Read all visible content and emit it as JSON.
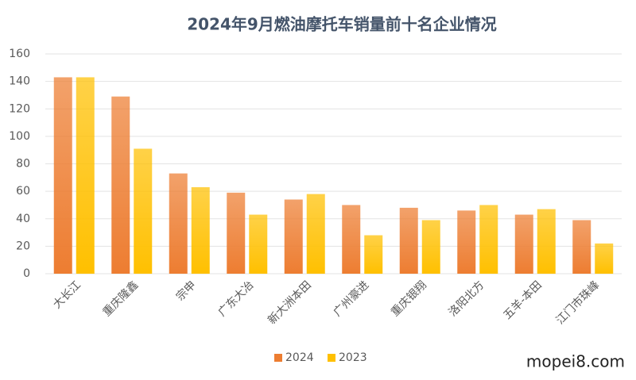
{
  "chart_data": {
    "type": "bar",
    "title": "2024年9月燃油摩托车销量前十名企业情况",
    "categories": [
      "大长江",
      "重庆隆鑫",
      "宗申",
      "广东大冶",
      "新大洲本田",
      "广州豪进",
      "重庆银翔",
      "洛阳北方",
      "五羊-本田",
      "江门市珠峰"
    ],
    "series": [
      {
        "name": "2024",
        "color": "#ED7D31",
        "values": [
          143,
          129,
          73,
          59,
          54,
          50,
          48,
          46,
          43,
          39
        ]
      },
      {
        "name": "2023",
        "color": "#FFC000",
        "values": [
          143,
          91,
          63,
          43,
          58,
          28,
          39,
          50,
          47,
          22
        ]
      }
    ],
    "ylim": [
      0,
      160
    ],
    "yticks": [
      0,
      20,
      40,
      60,
      80,
      100,
      120,
      140,
      160
    ],
    "grid": true,
    "legend": "bottom"
  },
  "watermark": "mopei8.com"
}
